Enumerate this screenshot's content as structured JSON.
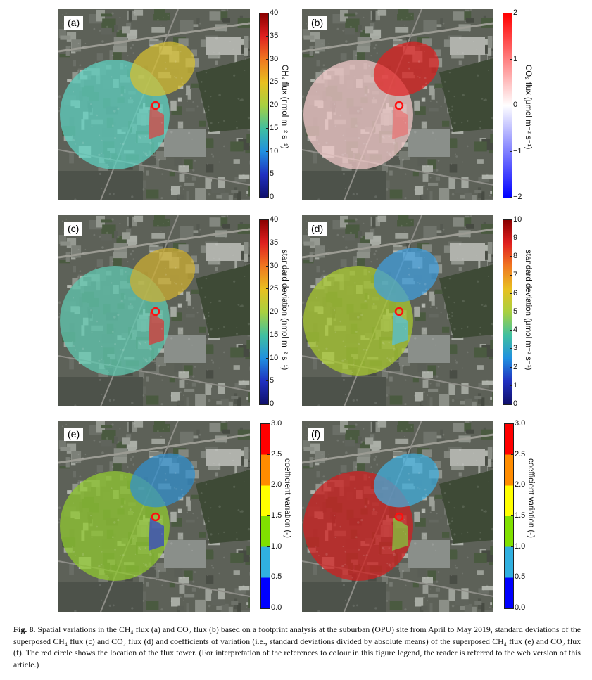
{
  "panels": [
    {
      "id": "a",
      "label": "(a)",
      "colorbar": {
        "label": "CH₄ flux (nmol m⁻² s⁻¹)",
        "ticks": [
          "40",
          "35",
          "30",
          "25",
          "20",
          "15",
          "10",
          "5",
          "0"
        ],
        "colors": [
          "#8b0000",
          "#e02020",
          "#f07820",
          "#e8c020",
          "#a8d040",
          "#40c0a0",
          "#2090e0",
          "#2030c0",
          "#10106a"
        ],
        "discrete": false
      }
    },
    {
      "id": "b",
      "label": "(b)",
      "colorbar": {
        "label": "CO₂ flux (μmol m⁻² s⁻¹)",
        "ticks": [
          "2",
          "1",
          "0",
          "−1",
          "−2"
        ],
        "colors": [
          "#ff0000",
          "#ffffff",
          "#0000ff"
        ],
        "discrete": false
      }
    },
    {
      "id": "c",
      "label": "(c)",
      "colorbar": {
        "label": "standard deviation (nmol m⁻² s⁻¹)",
        "ticks": [
          "40",
          "35",
          "30",
          "25",
          "20",
          "15",
          "10",
          "5",
          "0"
        ],
        "colors": [
          "#8b0000",
          "#e02020",
          "#f07820",
          "#e8c020",
          "#a8d040",
          "#40c0a0",
          "#2090e0",
          "#2030c0",
          "#10106a"
        ],
        "discrete": false
      }
    },
    {
      "id": "d",
      "label": "(d)",
      "colorbar": {
        "label": "standard deviation (μmol m⁻² s⁻¹)",
        "ticks": [
          "10",
          "9",
          "8",
          "7",
          "6",
          "5",
          "4",
          "3",
          "2",
          "1",
          "0"
        ],
        "colors": [
          "#8b0000",
          "#e02020",
          "#f07820",
          "#e8c020",
          "#a8d040",
          "#40c0a0",
          "#2090e0",
          "#2030c0",
          "#10106a"
        ],
        "discrete": false
      }
    },
    {
      "id": "e",
      "label": "(e)",
      "colorbar": {
        "label": "coefficient variation (-)",
        "ticks": [
          "3.0",
          "2.5",
          "2.0",
          "1.5",
          "1.0",
          "0.5",
          "0.0"
        ],
        "colors": [
          "#ff0000",
          "#ff8c00",
          "#ffff00",
          "#80e000",
          "#30b0e0",
          "#0000ff"
        ],
        "discrete": true
      }
    },
    {
      "id": "f",
      "label": "(f)",
      "colorbar": {
        "label": "coefficient variation (-)",
        "ticks": [
          "3.0",
          "2.5",
          "2.0",
          "1.5",
          "1.0",
          "0.5",
          "0.0"
        ],
        "colors": [
          "#ff0000",
          "#ff8c00",
          "#ffff00",
          "#80e000",
          "#30b0e0",
          "#0000ff"
        ],
        "discrete": true
      }
    }
  ],
  "caption": {
    "prefix": "Fig. 8.",
    "text": "Spatial variations in the CH₄ flux (a) and CO₂ flux (b) based on a footprint analysis at the suburban (OPU) site from April to May 2019, standard deviations of the superposed CH₄ flux (c) and CO₂ flux (d) and coefficients of variation (i.e., standard deviations divided by absolute means) of the superposed CH₄ flux (e) and CO₂ flux (f). The red circle shows the location of the flux tower. (For interpretation of the references to colour in this figure legend, the reader is referred to the web version of this article.)"
  },
  "overlay_colors": {
    "a": {
      "big": "#5fd0c0",
      "ne": "#d8c030",
      "se": "#e04040"
    },
    "b": {
      "big": "#f0c8c8",
      "ne": "#e02020",
      "se": "#e87070"
    },
    "c": {
      "big": "#60c8b0",
      "ne": "#d0b030",
      "se": "#e03030"
    },
    "d": {
      "big": "#a8c830",
      "ne": "#40a0e0",
      "se": "#50c0e0"
    },
    "e": {
      "big": "#90c830",
      "ne": "#3090d0",
      "se": "#3040d0"
    },
    "f": {
      "big": "#d02020",
      "ne": "#40b0e0",
      "se": "#80d040"
    }
  }
}
